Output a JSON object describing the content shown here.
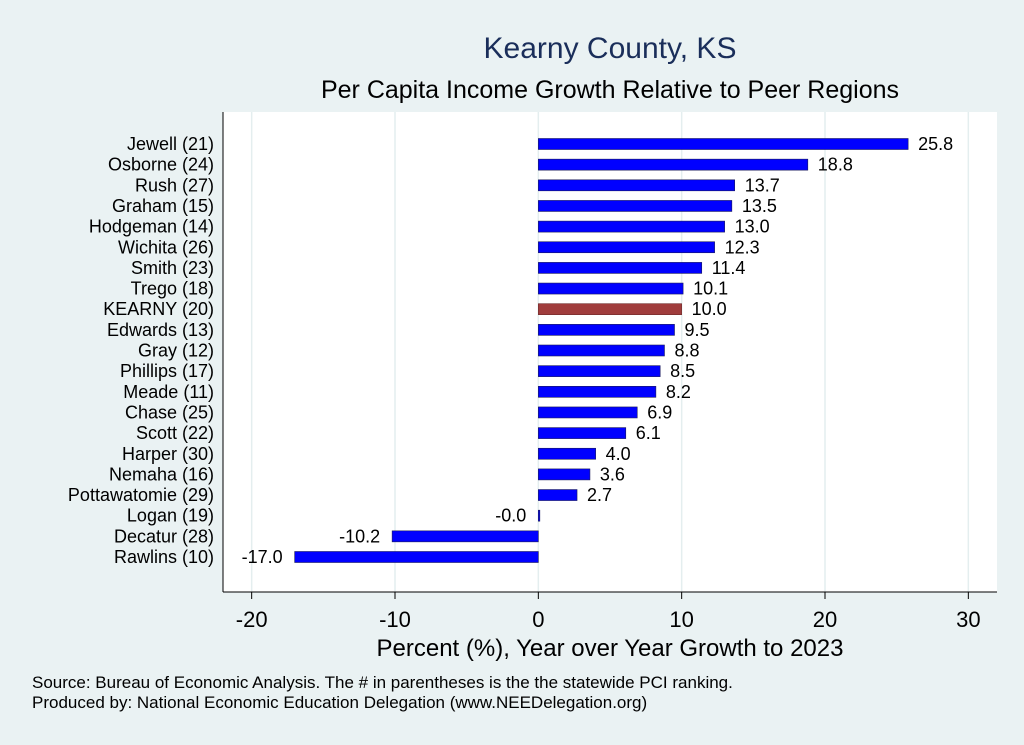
{
  "chart_data": {
    "type": "bar",
    "orientation": "horizontal",
    "title": "Kearny County, KS",
    "subtitle": "Per Capita Income Growth Relative to Peer Regions",
    "xlabel": "Percent (%), Year over Year Growth to 2023",
    "xlim": [
      -22,
      32
    ],
    "xticks": [
      -20,
      -10,
      0,
      10,
      20,
      30
    ],
    "xtick_labels": [
      "-20",
      "-10",
      "0",
      "10",
      "20",
      "30"
    ],
    "grid": true,
    "categories": [
      "Jewell (21)",
      "Osborne (24)",
      "Rush (27)",
      "Graham (15)",
      "Hodgeman (14)",
      "Wichita (26)",
      "Smith (23)",
      "Trego (18)",
      "KEARNY (20)",
      "Edwards (13)",
      "Gray (12)",
      "Phillips (17)",
      "Meade (11)",
      "Chase (25)",
      "Scott (22)",
      "Harper (30)",
      "Nemaha (16)",
      "Pottawatomie (29)",
      "Logan (19)",
      "Decatur (28)",
      "Rawlins (10)"
    ],
    "values": [
      25.8,
      18.8,
      13.7,
      13.5,
      13.0,
      12.3,
      11.4,
      10.1,
      10.0,
      9.5,
      8.8,
      8.5,
      8.2,
      6.9,
      6.1,
      4.0,
      3.6,
      2.7,
      -0.0,
      -10.2,
      -17.0
    ],
    "value_labels": [
      "25.8",
      "18.8",
      "13.7",
      "13.5",
      "13.0",
      "12.3",
      "11.4",
      "10.1",
      "10.0",
      "9.5",
      "8.8",
      "8.5",
      "8.2",
      "6.9",
      "6.1",
      "4.0",
      "3.6",
      "2.7",
      "-0.0",
      "-10.2",
      "-17.0"
    ],
    "highlight_category": "KEARNY (20)",
    "colors": {
      "bar": "#0000ff",
      "highlight": "#a03c3c",
      "title": "#1a2e5a",
      "background": "#eaf2f3",
      "plot_background": "#ffffff",
      "grid": "#e4eeef"
    }
  },
  "footer": {
    "source": "Source: Bureau of Economic Analysis. The # in parentheses is the the statewide PCI ranking.",
    "produced_by": "Produced by: National Economic Education Delegation (www.NEEDelegation.org)"
  }
}
